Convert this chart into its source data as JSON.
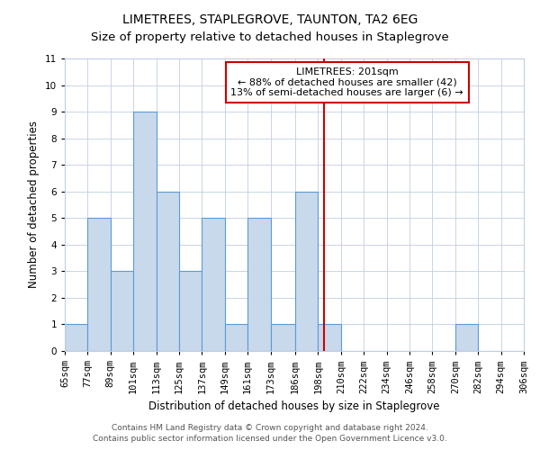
{
  "title": "LIMETREES, STAPLEGROVE, TAUNTON, TA2 6EG",
  "subtitle": "Size of property relative to detached houses in Staplegrove",
  "xlabel": "Distribution of detached houses by size in Staplegrove",
  "ylabel": "Number of detached properties",
  "bin_edges": [
    65,
    77,
    89,
    101,
    113,
    125,
    137,
    149,
    161,
    173,
    186,
    198,
    210,
    222,
    234,
    246,
    258,
    270,
    282,
    294,
    306
  ],
  "bin_labels": [
    "65sqm",
    "77sqm",
    "89sqm",
    "101sqm",
    "113sqm",
    "125sqm",
    "137sqm",
    "149sqm",
    "161sqm",
    "173sqm",
    "186sqm",
    "198sqm",
    "210sqm",
    "222sqm",
    "234sqm",
    "246sqm",
    "258sqm",
    "270sqm",
    "282sqm",
    "294sqm",
    "306sqm"
  ],
  "counts": [
    1,
    5,
    3,
    9,
    6,
    3,
    5,
    1,
    5,
    1,
    6,
    1,
    0,
    0,
    0,
    0,
    0,
    1,
    0,
    0
  ],
  "bar_color": "#c8d9ec",
  "bar_edge_color": "#5b9bd5",
  "property_value": 201,
  "vline_color": "#cc0000",
  "annotation_title": "LIMETREES: 201sqm",
  "annotation_line1": "← 88% of detached houses are smaller (42)",
  "annotation_line2": "13% of semi-detached houses are larger (6) →",
  "annotation_box_color": "#cc0000",
  "ylim": [
    0,
    11
  ],
  "yticks": [
    0,
    1,
    2,
    3,
    4,
    5,
    6,
    7,
    8,
    9,
    10,
    11
  ],
  "footer1": "Contains HM Land Registry data © Crown copyright and database right 2024.",
  "footer2": "Contains public sector information licensed under the Open Government Licence v3.0.",
  "title_fontsize": 10,
  "label_fontsize": 8.5,
  "tick_fontsize": 7.5,
  "footer_fontsize": 6.5,
  "annot_fontsize": 8,
  "bg_color": "#ffffff",
  "grid_color": "#c0cfe0"
}
